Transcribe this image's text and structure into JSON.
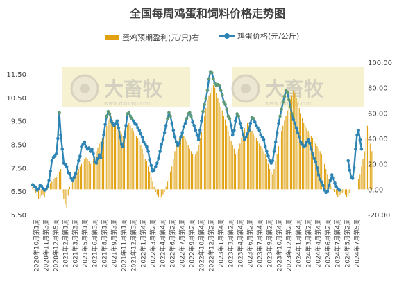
{
  "chart_data": {
    "type": "bar+line",
    "title": "全国每周鸡蛋和饲料价格走势图",
    "legend": {
      "bar_label": "蛋鸡预期盈利(元/只)右",
      "line_label": "鸡蛋价格(元/公斤)"
    },
    "watermark": "大畜牧 www.dxumu.com",
    "left_axis": {
      "ticks": [
        "5.50",
        "6.50",
        "7.50",
        "8.50",
        "9.50",
        "10.50",
        "11.50"
      ],
      "min": 5.5,
      "max": 12.0
    },
    "right_axis": {
      "ticks": [
        "-20.00",
        "0.00",
        "20.00",
        "40.00",
        "60.00",
        "80.00",
        "100.00"
      ],
      "min": -20,
      "max": 100
    },
    "x_tick_labels": [
      "2020年10月第1周",
      "2020年11月第3周",
      "2020年12月第5周",
      "2021年2月第1周",
      "2021年3月第3周",
      "2021年5月第1周",
      "2021年6月第3周",
      "2021年8月第1周",
      "2021年9月第3周",
      "2021年11月第1周",
      "2021年12月第3周",
      "2022年1月第4周",
      "2022年3月第2周",
      "2022年4月第4周",
      "2022年6月第2周",
      "2022年7月第4周",
      "2022年9月第2周",
      "2022年10月第4周",
      "2022年12月第2周",
      "2023年1月第4周",
      "2023年3月第2周",
      "2023年4月第4周",
      "2023年6月第2周",
      "2023年7月第4周",
      "2023年9月第2周",
      "2023年10月第4周",
      "2023年12月第2周",
      "2024年1月第4周",
      "2024年3月第2周",
      "2024年4月第4周",
      "2024年6月第2周",
      "2024年7月第4周",
      "2024年5月第2周",
      "2024年7月第5周"
    ],
    "series": [
      {
        "name": "鸡蛋价格(元/公斤)",
        "type": "line",
        "axis": "left",
        "color": "#2E84B3",
        "highlight_color": "#5E9A78",
        "values": [
          6.78,
          6.72,
          6.68,
          6.55,
          6.6,
          6.75,
          6.72,
          6.62,
          6.55,
          6.58,
          6.7,
          6.95,
          7.35,
          7.8,
          7.95,
          8.0,
          8.1,
          8.75,
          9.85,
          8.9,
          8.3,
          7.7,
          7.65,
          7.55,
          7.3,
          7.25,
          7.05,
          6.95,
          7.1,
          7.25,
          7.5,
          7.8,
          8.0,
          8.4,
          8.5,
          8.6,
          8.4,
          8.3,
          8.35,
          8.2,
          8.3,
          8.1,
          7.75,
          7.7,
          7.9,
          8.05,
          7.95,
          8.55,
          8.9,
          9.35,
          9.7,
          9.9,
          9.8,
          9.5,
          9.4,
          9.3,
          9.4,
          9.5,
          9.2,
          8.8,
          8.5,
          8.4,
          8.8,
          9.3,
          9.8,
          9.85,
          9.7,
          9.6,
          9.5,
          9.4,
          9.35,
          9.2,
          9.1,
          8.95,
          8.8,
          8.6,
          8.5,
          8.4,
          8.2,
          7.85,
          7.6,
          7.35,
          7.4,
          7.55,
          7.7,
          7.9,
          8.2,
          8.5,
          8.7,
          9.0,
          9.3,
          9.6,
          9.85,
          9.7,
          9.4,
          9.1,
          8.8,
          8.6,
          8.45,
          8.55,
          8.8,
          9.0,
          9.25,
          9.4,
          9.6,
          9.8,
          9.85,
          9.7,
          9.45,
          9.3,
          9.1,
          8.9,
          8.7,
          9.1,
          9.5,
          9.9,
          10.2,
          10.45,
          10.8,
          11.3,
          11.6,
          11.55,
          11.3,
          11.1,
          11.0,
          11.05,
          11.0,
          10.8,
          10.6,
          10.3,
          10.2,
          10.0,
          9.7,
          9.6,
          9.3,
          8.9,
          9.1,
          9.5,
          9.8,
          9.7,
          9.4,
          9.2,
          8.9,
          8.7,
          8.8,
          8.95,
          9.1,
          9.4,
          9.65,
          9.6,
          9.45,
          9.3,
          9.2,
          9.1,
          8.9,
          8.8,
          8.7,
          8.4,
          8.2,
          8.0,
          7.8,
          7.7,
          7.8,
          8.2,
          8.6,
          9.0,
          9.4,
          9.7,
          10.0,
          10.3,
          10.55,
          10.8,
          10.7,
          10.4,
          10.1,
          9.8,
          9.55,
          9.4,
          9.2,
          9.0,
          8.8,
          8.6,
          8.5,
          8.4,
          8.45,
          8.6,
          8.7,
          8.55,
          8.3,
          8.1,
          7.9,
          7.75,
          7.5,
          7.2,
          7.0,
          6.9,
          6.75,
          6.55,
          6.45,
          6.5,
          6.75,
          6.95,
          7.2,
          7.05,
          6.85,
          6.7,
          6.6,
          6.55,
          null,
          null,
          null,
          null,
          null,
          7.8,
          7.4,
          7.1,
          7.05,
          7.5,
          8.3,
          8.9,
          9.1,
          8.7,
          8.3
        ]
      },
      {
        "name": "蛋鸡预期盈利(元/只)右",
        "type": "bar",
        "axis": "right",
        "color": "#E0A212",
        "values": [
          2,
          0,
          -3,
          -6,
          -8,
          -7,
          -5,
          -4,
          -6,
          -3,
          2,
          4,
          5,
          6,
          8,
          9,
          10,
          12,
          14,
          16,
          -3,
          -8,
          -12,
          -15,
          -5,
          2,
          5,
          8,
          10,
          12,
          14,
          16,
          18,
          20,
          22,
          24,
          25,
          24,
          22,
          20,
          22,
          24,
          26,
          30,
          33,
          36,
          38,
          40,
          43,
          46,
          50,
          54,
          56,
          58,
          54,
          52,
          50,
          48,
          47,
          46,
          44,
          42,
          46,
          48,
          50,
          52,
          50,
          48,
          46,
          44,
          42,
          40,
          38,
          35,
          32,
          28,
          24,
          22,
          18,
          14,
          10,
          6,
          2,
          -2,
          -4,
          -6,
          -8,
          -6,
          -4,
          -2,
          2,
          6,
          10,
          14,
          18,
          24,
          30,
          36,
          38,
          40,
          42,
          44,
          42,
          40,
          38,
          35,
          32,
          30,
          28,
          26,
          28,
          30,
          35,
          40,
          45,
          52,
          58,
          64,
          70,
          74,
          76,
          80,
          82,
          80,
          76,
          72,
          68,
          65,
          62,
          58,
          55,
          50,
          46,
          42,
          38,
          35,
          32,
          28,
          30,
          32,
          36,
          40,
          44,
          48,
          50,
          52,
          50,
          48,
          46,
          44,
          42,
          40,
          38,
          36,
          34,
          32,
          30,
          28,
          24,
          20,
          16,
          14,
          12,
          16,
          22,
          28,
          34,
          40,
          46,
          50,
          54,
          58,
          62,
          66,
          70,
          74,
          78,
          76,
          72,
          68,
          64,
          60,
          56,
          52,
          50,
          48,
          46,
          44,
          42,
          40,
          38,
          36,
          34,
          32,
          30,
          28,
          24,
          20,
          16,
          12,
          8,
          4,
          2,
          0,
          -2,
          -4,
          -6,
          -5,
          -4,
          -3,
          -2,
          -4,
          -6,
          -5,
          -3,
          null,
          null,
          null,
          null,
          null,
          8,
          12,
          18,
          24,
          30,
          40,
          50,
          44,
          36,
          30
        ]
      }
    ]
  }
}
